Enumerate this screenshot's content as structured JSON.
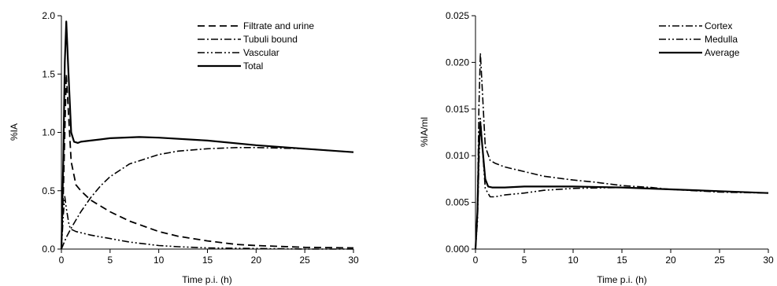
{
  "chart_data": [
    {
      "type": "line",
      "xlabel": "Time p.i. (h)",
      "ylabel": "%IA",
      "xlim": [
        0,
        30
      ],
      "ylim": [
        0,
        2.0
      ],
      "xticks": [
        "0",
        "5",
        "10",
        "15",
        "20",
        "25",
        "30"
      ],
      "yticks": [
        "0.0",
        "0.5",
        "1.0",
        "1.5",
        "2.0"
      ],
      "legend_position": "top-right",
      "series": [
        {
          "name": "Filtrate and urine",
          "style": "dashed",
          "color": "#000000",
          "x": [
            0,
            0.2,
            0.35,
            0.5,
            0.7,
            1,
            1.5,
            2,
            3,
            4,
            5,
            7,
            10,
            12,
            15,
            18,
            20,
            25,
            30
          ],
          "y": [
            0,
            0.5,
            1.0,
            1.5,
            1.2,
            0.75,
            0.55,
            0.5,
            0.42,
            0.37,
            0.32,
            0.24,
            0.15,
            0.11,
            0.07,
            0.04,
            0.03,
            0.015,
            0.01
          ]
        },
        {
          "name": "Tubuli bound",
          "style": "dash-dot",
          "color": "#000000",
          "x": [
            0,
            0.5,
            1,
            2,
            3,
            4,
            5,
            7,
            10,
            12,
            15,
            18,
            20,
            25,
            30
          ],
          "y": [
            0,
            0.1,
            0.18,
            0.32,
            0.44,
            0.54,
            0.62,
            0.73,
            0.81,
            0.84,
            0.86,
            0.87,
            0.87,
            0.86,
            0.83
          ]
        },
        {
          "name": "Vascular",
          "style": "dash-dot-dot",
          "color": "#000000",
          "x": [
            0,
            0.2,
            0.35,
            0.5,
            0.8,
            1,
            1.5,
            2,
            3,
            5,
            7,
            10,
            12,
            15,
            20,
            25,
            30
          ],
          "y": [
            0,
            0.3,
            0.45,
            0.35,
            0.2,
            0.17,
            0.15,
            0.14,
            0.12,
            0.09,
            0.06,
            0.03,
            0.02,
            0.01,
            0.005,
            0,
            0
          ]
        },
        {
          "name": "Total",
          "style": "solid",
          "color": "#000000",
          "x": [
            0,
            0.2,
            0.35,
            0.5,
            0.7,
            1,
            1.3,
            1.7,
            2,
            3,
            5,
            8,
            10,
            15,
            20,
            25,
            30
          ],
          "y": [
            0,
            0.8,
            1.6,
            1.95,
            1.55,
            1.0,
            0.92,
            0.91,
            0.92,
            0.93,
            0.95,
            0.96,
            0.955,
            0.93,
            0.89,
            0.86,
            0.83
          ]
        }
      ]
    },
    {
      "type": "line",
      "xlabel": "Time p.i. (h)",
      "ylabel": "%IA/ml",
      "xlim": [
        0,
        30
      ],
      "ylim": [
        0,
        0.025
      ],
      "xticks": [
        "0",
        "5",
        "10",
        "15",
        "20",
        "25",
        "30"
      ],
      "yticks": [
        "0.000",
        "0.005",
        "0.010",
        "0.015",
        "0.020",
        "0.025"
      ],
      "legend_position": "top-right",
      "series": [
        {
          "name": "Cortex",
          "style": "dash-dot",
          "color": "#000000",
          "x": [
            0,
            0.2,
            0.35,
            0.5,
            0.7,
            1,
            1.5,
            2,
            3,
            5,
            7,
            10,
            12,
            15,
            18,
            20,
            25,
            30
          ],
          "y": [
            0,
            0.004,
            0.015,
            0.021,
            0.017,
            0.011,
            0.0095,
            0.0092,
            0.0088,
            0.0083,
            0.0078,
            0.0074,
            0.0072,
            0.0068,
            0.0066,
            0.0064,
            0.0061,
            0.006
          ]
        },
        {
          "name": "Medulla",
          "style": "dash-dot-dot",
          "color": "#000000",
          "x": [
            0,
            0.2,
            0.35,
            0.5,
            0.7,
            1,
            1.5,
            2,
            3,
            5,
            7,
            10,
            15,
            20,
            25,
            30
          ],
          "y": [
            0,
            0.003,
            0.009,
            0.014,
            0.011,
            0.0065,
            0.0056,
            0.0056,
            0.0058,
            0.006,
            0.0063,
            0.0065,
            0.0066,
            0.0064,
            0.0062,
            0.006
          ]
        },
        {
          "name": "Average",
          "style": "solid",
          "color": "#000000",
          "x": [
            0,
            0.2,
            0.35,
            0.5,
            0.7,
            1,
            1.3,
            1.7,
            2,
            3,
            5,
            7,
            10,
            15,
            20,
            25,
            30
          ],
          "y": [
            0,
            0.004,
            0.011,
            0.0135,
            0.011,
            0.0075,
            0.0067,
            0.0066,
            0.0066,
            0.0066,
            0.0067,
            0.0067,
            0.0067,
            0.0066,
            0.0064,
            0.0062,
            0.006
          ]
        }
      ]
    }
  ]
}
